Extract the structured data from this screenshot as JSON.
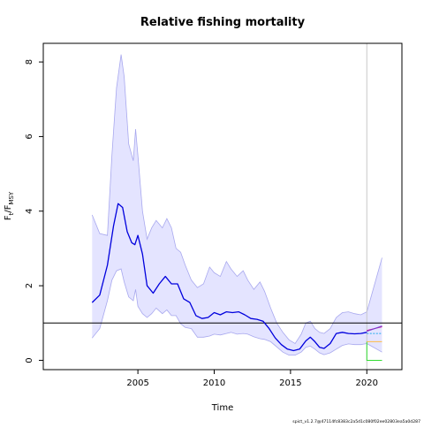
{
  "chart_data": {
    "type": "line",
    "title": "Relative fishing mortality",
    "xlabel": "Time",
    "ylabel": {
      "main": "F",
      "sub1": "t",
      "sep": "/F",
      "sub2": "MSY"
    },
    "xlim": [
      1998.8,
      2022.3
    ],
    "ylim": [
      -0.25,
      8.5
    ],
    "xticks": [
      2005,
      2010,
      2015,
      2020
    ],
    "xtick_labels": [
      "2005",
      "2010",
      "2015",
      "2020"
    ],
    "yticks": [
      0,
      2,
      4,
      6,
      8
    ],
    "ytick_labels": [
      "0",
      "2",
      "4",
      "6",
      "8"
    ],
    "reference_line_y": 1.0,
    "vertical_marker_x": 2020.0,
    "grid": false,
    "colors": {
      "estimate": "#0000dd",
      "ci_fill": "#e4e4ff",
      "ci_edge": "#a8a8ee",
      "reference": "#000000",
      "marker": "#c8c8c8",
      "forecast_median": "#7b3fcf",
      "forecast_upper": "#d2008a",
      "forecast_mid": "#22aaee",
      "forecast_low": "#ffbb44",
      "forecast_zero": "#33dd33"
    },
    "estimate": {
      "x": [
        2002.0,
        2002.5,
        2003.0,
        2003.4,
        2003.7,
        2004.0,
        2004.3,
        2004.6,
        2004.8,
        2005.0,
        2005.3,
        2005.6,
        2006.0,
        2006.4,
        2006.8,
        2007.2,
        2007.6,
        2008.0,
        2008.4,
        2008.8,
        2009.2,
        2009.6,
        2010.0,
        2010.4,
        2010.8,
        2011.2,
        2011.6,
        2012.0,
        2012.4,
        2012.8,
        2013.2,
        2013.6,
        2014.0,
        2014.4,
        2014.8,
        2015.2,
        2015.6,
        2016.0,
        2016.3,
        2016.6,
        2016.9,
        2017.2,
        2017.6,
        2018.0,
        2018.4,
        2018.8,
        2019.2,
        2019.6,
        2020.0
      ],
      "y": [
        1.55,
        1.75,
        2.55,
        3.6,
        4.2,
        4.1,
        3.45,
        3.15,
        3.1,
        3.35,
        2.85,
        2.0,
        1.8,
        2.05,
        2.25,
        2.05,
        2.05,
        1.65,
        1.55,
        1.2,
        1.12,
        1.15,
        1.28,
        1.22,
        1.3,
        1.28,
        1.3,
        1.22,
        1.12,
        1.1,
        1.05,
        0.85,
        0.6,
        0.42,
        0.3,
        0.26,
        0.3,
        0.52,
        0.62,
        0.5,
        0.35,
        0.32,
        0.45,
        0.72,
        0.75,
        0.72,
        0.71,
        0.72,
        0.75
      ]
    },
    "ci": {
      "x": [
        2002.0,
        2002.5,
        2003.0,
        2003.3,
        2003.6,
        2003.9,
        2004.1,
        2004.4,
        2004.7,
        2004.85,
        2005.0,
        2005.3,
        2005.6,
        2005.9,
        2006.2,
        2006.6,
        2006.9,
        2007.2,
        2007.5,
        2007.8,
        2008.1,
        2008.5,
        2008.9,
        2009.3,
        2009.7,
        2010.0,
        2010.4,
        2010.8,
        2011.1,
        2011.5,
        2011.9,
        2012.2,
        2012.6,
        2013.0,
        2013.3,
        2013.7,
        2014.1,
        2014.5,
        2014.9,
        2015.3,
        2015.7,
        2016.0,
        2016.3,
        2016.6,
        2016.9,
        2017.2,
        2017.6,
        2018.0,
        2018.4,
        2018.8,
        2019.2,
        2019.6,
        2020.0
      ],
      "upper": [
        3.9,
        3.4,
        3.35,
        5.5,
        7.3,
        8.2,
        7.6,
        5.8,
        5.35,
        6.2,
        5.5,
        4.0,
        3.25,
        3.55,
        3.75,
        3.55,
        3.8,
        3.55,
        3.0,
        2.9,
        2.55,
        2.15,
        1.95,
        2.05,
        2.5,
        2.35,
        2.25,
        2.65,
        2.45,
        2.25,
        2.4,
        2.15,
        1.9,
        2.1,
        1.85,
        1.4,
        1.0,
        0.75,
        0.55,
        0.45,
        0.7,
        1.0,
        1.05,
        0.85,
        0.75,
        0.72,
        0.85,
        1.15,
        1.28,
        1.3,
        1.25,
        1.22,
        1.3
      ],
      "lower": [
        0.6,
        0.85,
        1.6,
        2.15,
        2.4,
        2.45,
        2.1,
        1.7,
        1.6,
        1.9,
        1.45,
        1.25,
        1.15,
        1.25,
        1.4,
        1.25,
        1.35,
        1.2,
        1.2,
        0.98,
        0.88,
        0.85,
        0.62,
        0.62,
        0.65,
        0.7,
        0.68,
        0.72,
        0.75,
        0.7,
        0.72,
        0.7,
        0.63,
        0.58,
        0.56,
        0.5,
        0.36,
        0.22,
        0.14,
        0.14,
        0.22,
        0.35,
        0.38,
        0.3,
        0.2,
        0.15,
        0.2,
        0.3,
        0.4,
        0.44,
        0.42,
        0.42,
        0.45
      ]
    },
    "forecast": {
      "x": [
        2020.0,
        2021.0
      ],
      "ci_upper": [
        1.3,
        2.75
      ],
      "ci_lower": [
        0.45,
        0.22
      ],
      "median": [
        0.78,
        0.92
      ],
      "upper_scenario": [
        0.8,
        0.9
      ],
      "mid_scenario": [
        0.72,
        0.72
      ],
      "low_scenario": [
        0.5,
        0.5
      ],
      "zero_scenario": [
        0.0,
        0.0
      ]
    },
    "version_text": "spict_v1.2.7@47114fc8383c2a5d1c080f02ee02803ea5a0d287"
  }
}
